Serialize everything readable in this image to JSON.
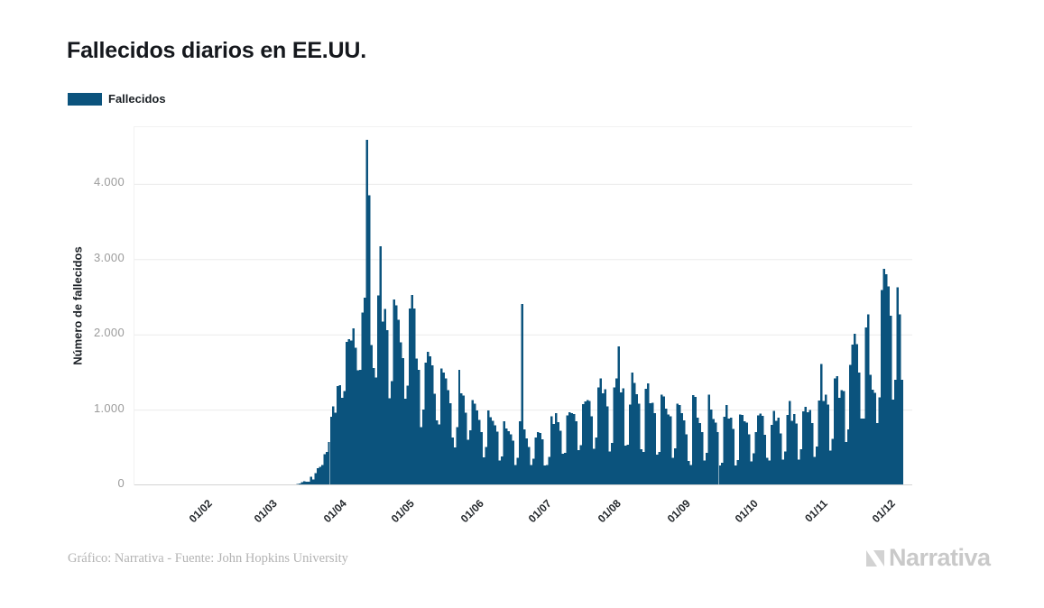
{
  "header": {
    "title": "Fallecidos diarios en EE.UU."
  },
  "legend": {
    "label": "Fallecidos",
    "swatch_color": "#0b537d"
  },
  "footer": {
    "credit": "Gráfico: Narrativa - Fuente: John Hopkins University",
    "brand": "Narrativa"
  },
  "chart_data": {
    "type": "bar",
    "title": "Fallecidos diarios en EE.UU.",
    "series_name": "Fallecidos",
    "ylabel": "Número de fallecidos",
    "xlabel": "",
    "grid": true,
    "legend_position": "top-left",
    "bar_color": "#0b537d",
    "grid_color": "#ebebeb",
    "baseline_color": "#d4d4d4",
    "ylim": [
      0,
      4760
    ],
    "yticks": [
      {
        "value": 0,
        "label": "0"
      },
      {
        "value": 1000,
        "label": "1.000"
      },
      {
        "value": 2000,
        "label": "2.000"
      },
      {
        "value": 3000,
        "label": "3.000"
      },
      {
        "value": 4000,
        "label": "4.000"
      }
    ],
    "x_unit": "day",
    "total_day_slots": 346,
    "xticks": [
      {
        "label": "01/02",
        "day": 28
      },
      {
        "label": "01/03",
        "day": 57
      },
      {
        "label": "01/04",
        "day": 88
      },
      {
        "label": "01/05",
        "day": 118
      },
      {
        "label": "01/06",
        "day": 149
      },
      {
        "label": "01/07",
        "day": 179
      },
      {
        "label": "01/08",
        "day": 210
      },
      {
        "label": "01/09",
        "day": 241
      },
      {
        "label": "01/10",
        "day": 271
      },
      {
        "label": "01/11",
        "day": 302
      },
      {
        "label": "01/12",
        "day": 332
      }
    ],
    "values": [
      0,
      0,
      0,
      0,
      0,
      0,
      0,
      0,
      0,
      0,
      0,
      0,
      0,
      0,
      0,
      0,
      0,
      0,
      0,
      0,
      0,
      0,
      0,
      0,
      0,
      0,
      0,
      0,
      0,
      0,
      0,
      0,
      0,
      0,
      0,
      0,
      0,
      0,
      0,
      0,
      0,
      0,
      0,
      0,
      0,
      0,
      0,
      0,
      0,
      0,
      0,
      0,
      0,
      0,
      0,
      0,
      1,
      1,
      5,
      3,
      4,
      2,
      3,
      4,
      4,
      4,
      6,
      4,
      8,
      7,
      11,
      12,
      18,
      23,
      41,
      57,
      49,
      46,
      111,
      80,
      164,
      225,
      247,
      268,
      411,
      445,
      573,
      912,
      1049,
      968,
      1321,
      1331,
      1165,
      1255,
      1906,
      1940,
      1922,
      2087,
      1830,
      1528,
      1535,
      2299,
      2494,
      4591,
      3857,
      1867,
      1561,
      1433,
      2524,
      3179,
      2174,
      2344,
      2065,
      1156,
      1384,
      2470,
      2390,
      2201,
      1898,
      1691,
      1154,
      1324,
      2350,
      2528,
      2353,
      1687,
      1534,
      776,
      1008,
      1630,
      1772,
      1715,
      1595,
      1218,
      865,
      808,
      1552,
      1501,
      1418,
      1263,
      1089,
      638,
      505,
      774,
      1535,
      1223,
      1193,
      967,
      605,
      730,
      1134,
      1083,
      995,
      872,
      709,
      373,
      507,
      997,
      906,
      860,
      800,
      714,
      331,
      383,
      851,
      757,
      722,
      678,
      594,
      267,
      368,
      851,
      2410,
      741,
      624,
      512,
      271,
      354,
      638,
      706,
      693,
      614,
      261,
      268,
      376,
      915,
      818,
      961,
      842,
      728,
      421,
      433,
      932,
      972,
      961,
      950,
      853,
      470,
      534,
      1082,
      1117,
      1135,
      1120,
      916,
      483,
      635,
      1300,
      1421,
      1222,
      1278,
      1049,
      447,
      565,
      1302,
      1420,
      1849,
      1236,
      1290,
      525,
      541,
      1074,
      1499,
      1360,
      1212,
      1083,
      482,
      445,
      1284,
      1357,
      1090,
      1099,
      960,
      408,
      446,
      1205,
      1184,
      1019,
      941,
      918,
      363,
      490,
      1084,
      1069,
      958,
      861,
      680,
      326,
      267,
      1200,
      1174,
      900,
      830,
      707,
      329,
      430,
      1205,
      1007,
      880,
      835,
      706,
      263,
      302,
      910,
      1066,
      886,
      900,
      751,
      264,
      335,
      943,
      933,
      852,
      832,
      677,
      318,
      427,
      710,
      931,
      953,
      923,
      670,
      368,
      331,
      802,
      989,
      856,
      901,
      688,
      340,
      449,
      933,
      1124,
      856,
      946,
      820,
      340,
      477,
      985,
      1042,
      971,
      1004,
      827,
      379,
      517,
      1130,
      1611,
      1122,
      1208,
      1071,
      459,
      620,
      1420,
      1449,
      1164,
      1266,
      1252,
      577,
      745,
      1598,
      1869,
      2015,
      1878,
      1499,
      885,
      889,
      2101,
      2273,
      1471,
      1270,
      1232,
      826,
      1172,
      2597,
      2879,
      2804,
      2646,
      2254,
      1138,
      1404,
      2634,
      2270,
      1404
    ]
  }
}
